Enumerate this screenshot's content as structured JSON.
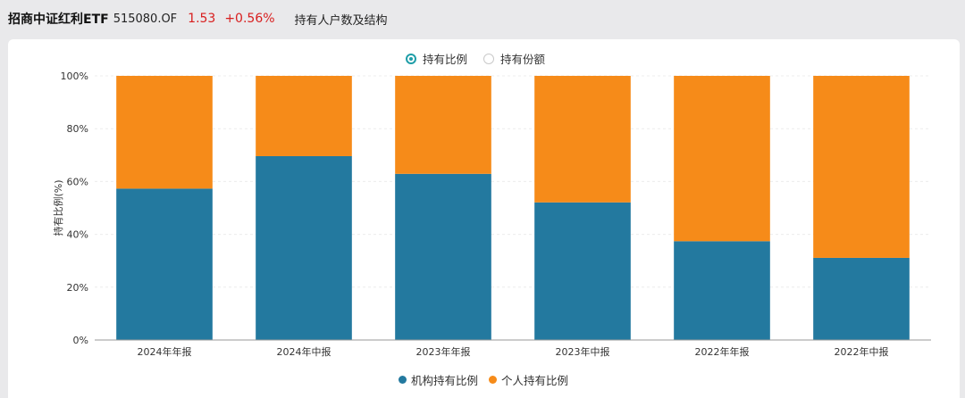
{
  "header": {
    "fund_name": "招商中证红利ETF",
    "fund_code": "515080.OF",
    "price": "1.53",
    "change": "+0.56%",
    "section_title": "持有人户数及结构",
    "price_color": "#d81e1e"
  },
  "toggle": {
    "options": [
      {
        "label": "持有比例",
        "selected": true
      },
      {
        "label": "持有份额",
        "selected": false
      }
    ],
    "accent_color": "#1f9ea8"
  },
  "chart_data": {
    "type": "bar",
    "stacked": true,
    "categories": [
      "2024年年报",
      "2024年中报",
      "2023年年报",
      "2023年中报",
      "2022年年报",
      "2022年中报"
    ],
    "series": [
      {
        "name": "机构持有比例",
        "color": "#23799f",
        "values": [
          57.3,
          69.6,
          62.9,
          52.1,
          37.4,
          31.1
        ]
      },
      {
        "name": "个人持有比例",
        "color": "#f68b19",
        "values": [
          42.7,
          30.4,
          37.1,
          47.9,
          62.6,
          68.9
        ]
      }
    ],
    "ylabel": "持有比例(%)",
    "ylim": [
      0,
      100
    ],
    "yticks": [
      "0%",
      "20%",
      "40%",
      "60%",
      "80%",
      "100%"
    ],
    "grid": true,
    "legend_position": "bottom-center"
  }
}
